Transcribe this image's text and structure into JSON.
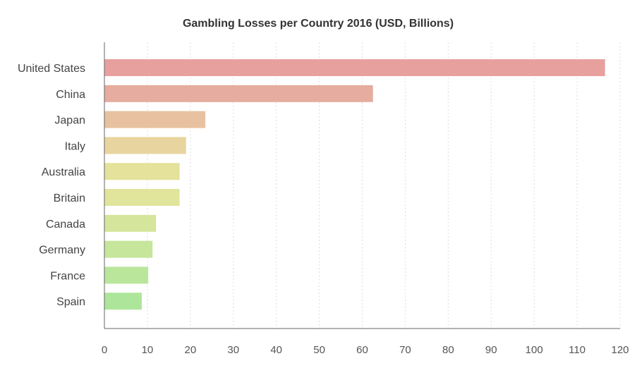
{
  "chart_data": {
    "type": "bar",
    "orientation": "horizontal",
    "title": "Gambling Losses per Country 2016 (USD, Billions)",
    "categories": [
      "United States",
      "China",
      "Japan",
      "Italy",
      "Australia",
      "Britain",
      "Canada",
      "Germany",
      "France",
      "Spain"
    ],
    "values": [
      116.5,
      62.5,
      23.5,
      19,
      17.5,
      17.5,
      12,
      11.2,
      10.2,
      8.7
    ],
    "colors": [
      "#e8a09f",
      "#e6ac9f",
      "#e8c2a0",
      "#e8d49e",
      "#e4e29b",
      "#e1e59b",
      "#d5e59b",
      "#c6e69b",
      "#b9e69b",
      "#ade69b"
    ],
    "xlim": [
      0,
      120
    ],
    "xticks": [
      0,
      10,
      20,
      30,
      40,
      50,
      60,
      70,
      80,
      90,
      100,
      110,
      120
    ],
    "grid": "vertical dotted",
    "xlabel": "",
    "ylabel": ""
  }
}
